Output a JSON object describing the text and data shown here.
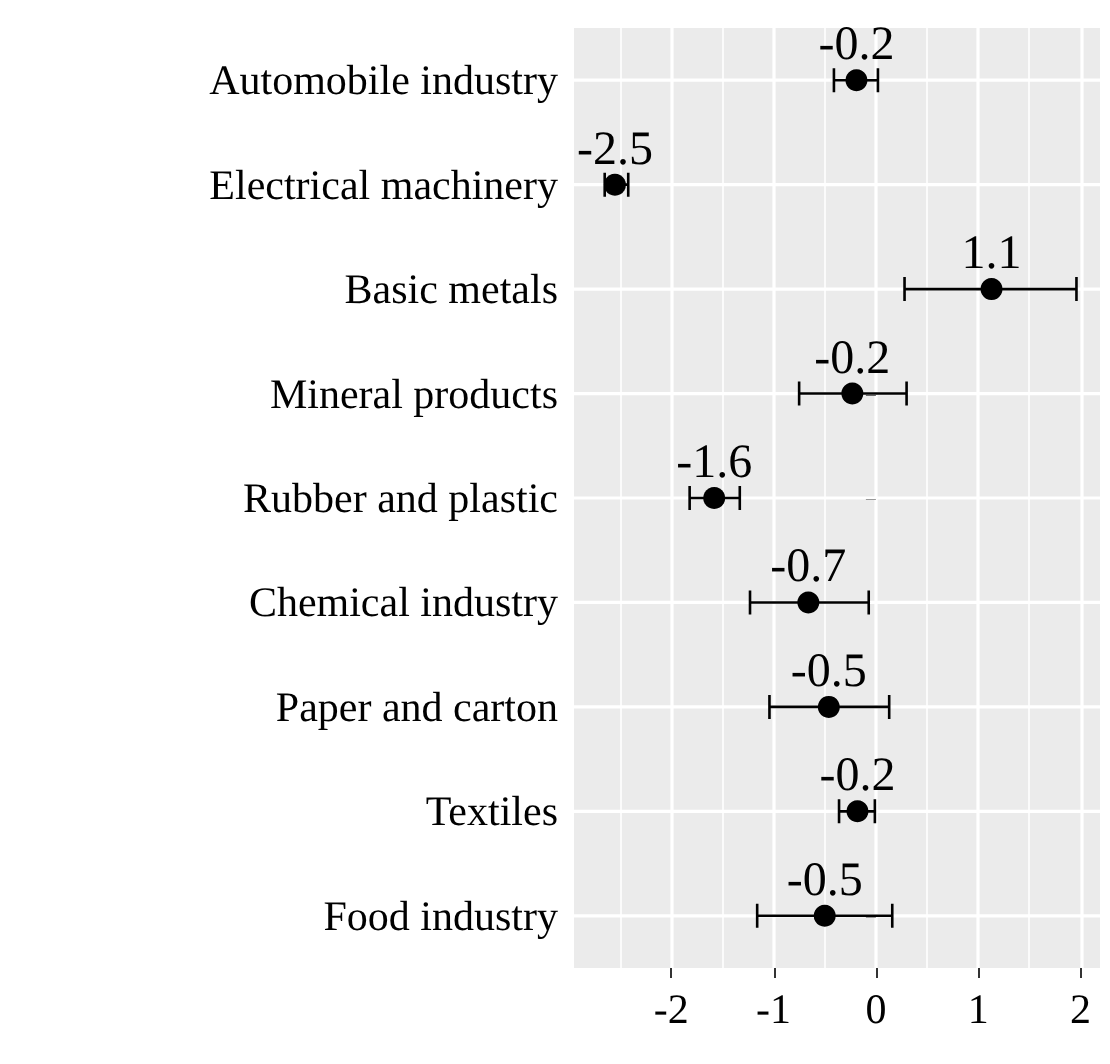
{
  "chart_data": {
    "type": "scatter",
    "orientation": "horizontal",
    "categories": [
      "Automobile industry",
      "Electrical machinery",
      "Basic metals",
      "Mineral products",
      "Rubber and plastic",
      "Chemical industry",
      "Paper and carton",
      "Textiles",
      "Food industry"
    ],
    "values": [
      -0.19,
      -2.55,
      1.13,
      -0.23,
      -1.58,
      -0.66,
      -0.46,
      -0.18,
      -0.5
    ],
    "errors": [
      [
        -0.41,
        0.02
      ],
      [
        -2.65,
        -2.42
      ],
      [
        0.28,
        1.96
      ],
      [
        -0.75,
        0.3
      ],
      [
        -1.82,
        -1.33
      ],
      [
        -1.23,
        -0.07
      ],
      [
        -1.04,
        0.13
      ],
      [
        -0.36,
        -0.01
      ],
      [
        -1.16,
        0.16
      ]
    ],
    "value_labels": [
      "-0.2",
      "-2.5",
      "1.1",
      "-0.2",
      "-1.6",
      "-0.7",
      "-0.5",
      "-0.2",
      "-0.5"
    ],
    "color": "#000000",
    "marker": "circle",
    "xlim": [
      -2.95,
      2.19
    ],
    "xticks": [
      -2,
      -1,
      0,
      1,
      2
    ],
    "grid": true
  }
}
